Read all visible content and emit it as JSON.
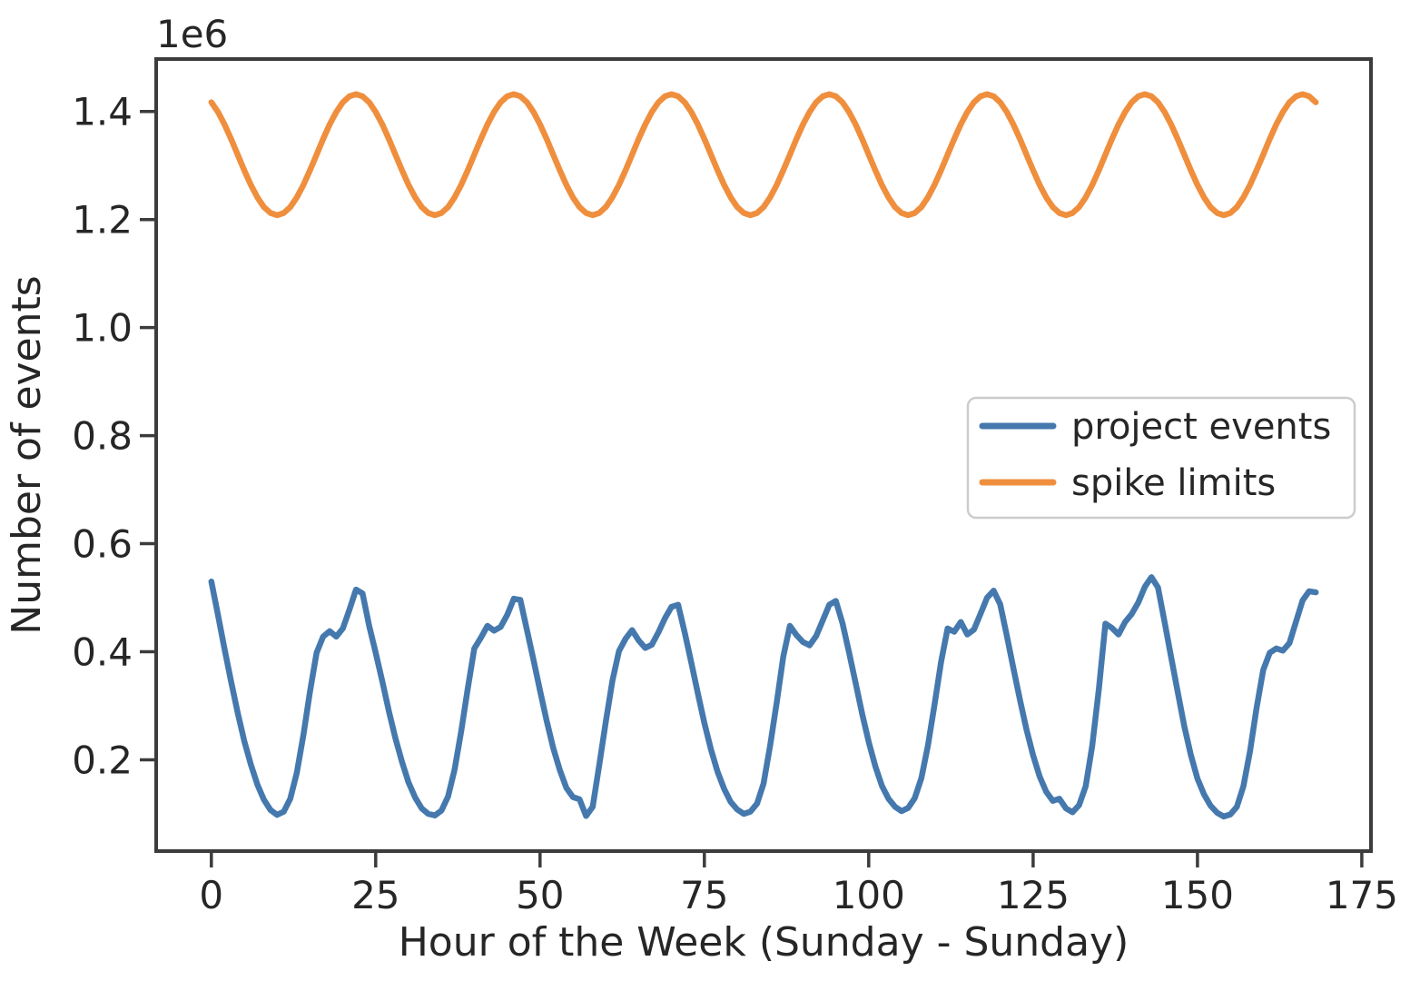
{
  "chart_data": {
    "type": "line",
    "title": "",
    "xlabel": "Hour of the Week (Sunday - Sunday)",
    "ylabel": "Number of events",
    "y_offset_text": "1e6",
    "values_unit": "events, in millions (axis shows 1e6 multiplier)",
    "value_multiplier": 1000000,
    "grid": false,
    "xlim": [
      -8.4,
      176.4
    ],
    "ylim": [
      0.031,
      1.497
    ],
    "x_ticks": [
      0,
      25,
      50,
      75,
      100,
      125,
      150,
      175
    ],
    "x_tick_labels": [
      "0",
      "25",
      "50",
      "75",
      "100",
      "125",
      "150",
      "175"
    ],
    "y_ticks": [
      0.2,
      0.4,
      0.6,
      0.8,
      1.0,
      1.2,
      1.4
    ],
    "y_tick_labels": [
      "0.2",
      "0.4",
      "0.6",
      "0.8",
      "1.0",
      "1.2",
      "1.4"
    ],
    "x": {
      "start": 0,
      "step": 1,
      "count": 169
    },
    "legend": {
      "loc": "center right"
    },
    "series": [
      {
        "name": "project events",
        "color": "#4579ae",
        "values": [
          0.53,
          0.468,
          0.405,
          0.345,
          0.287,
          0.235,
          0.191,
          0.154,
          0.126,
          0.107,
          0.098,
          0.104,
          0.128,
          0.176,
          0.246,
          0.326,
          0.398,
          0.428,
          0.438,
          0.428,
          0.443,
          0.478,
          0.515,
          0.508,
          0.448,
          0.398,
          0.345,
          0.29,
          0.24,
          0.196,
          0.158,
          0.13,
          0.11,
          0.1,
          0.097,
          0.106,
          0.132,
          0.182,
          0.252,
          0.332,
          0.406,
          0.426,
          0.448,
          0.439,
          0.446,
          0.468,
          0.498,
          0.496,
          0.44,
          0.385,
          0.328,
          0.272,
          0.222,
          0.181,
          0.148,
          0.131,
          0.127,
          0.096,
          0.113,
          0.19,
          0.27,
          0.346,
          0.401,
          0.424,
          0.44,
          0.421,
          0.407,
          0.413,
          0.436,
          0.462,
          0.483,
          0.487,
          0.436,
          0.38,
          0.323,
          0.268,
          0.219,
          0.178,
          0.146,
          0.122,
          0.108,
          0.1,
          0.104,
          0.119,
          0.156,
          0.226,
          0.306,
          0.391,
          0.448,
          0.431,
          0.418,
          0.412,
          0.429,
          0.458,
          0.487,
          0.494,
          0.453,
          0.399,
          0.342,
          0.285,
          0.233,
          0.188,
          0.152,
          0.128,
          0.113,
          0.105,
          0.111,
          0.129,
          0.166,
          0.226,
          0.301,
          0.381,
          0.443,
          0.437,
          0.455,
          0.432,
          0.441,
          0.47,
          0.5,
          0.513,
          0.488,
          0.43,
          0.37,
          0.311,
          0.256,
          0.208,
          0.169,
          0.141,
          0.124,
          0.128,
          0.11,
          0.103,
          0.116,
          0.151,
          0.226,
          0.331,
          0.452,
          0.444,
          0.432,
          0.455,
          0.47,
          0.491,
          0.52,
          0.538,
          0.519,
          0.455,
          0.39,
          0.326,
          0.262,
          0.209,
          0.165,
          0.136,
          0.115,
          0.102,
          0.095,
          0.099,
          0.113,
          0.151,
          0.216,
          0.296,
          0.366,
          0.398,
          0.406,
          0.402,
          0.416,
          0.456,
          0.495,
          0.512,
          0.51
        ]
      },
      {
        "name": "spike limits",
        "color": "#ef8f3e",
        "values": [
          1.417,
          1.399,
          1.376,
          1.349,
          1.32,
          1.291,
          1.264,
          1.241,
          1.223,
          1.212,
          1.208,
          1.212,
          1.223,
          1.241,
          1.264,
          1.291,
          1.32,
          1.349,
          1.376,
          1.399,
          1.417,
          1.428,
          1.432,
          1.428,
          1.417,
          1.399,
          1.376,
          1.349,
          1.32,
          1.291,
          1.264,
          1.241,
          1.223,
          1.212,
          1.208,
          1.212,
          1.223,
          1.241,
          1.264,
          1.291,
          1.32,
          1.349,
          1.376,
          1.399,
          1.417,
          1.428,
          1.432,
          1.428,
          1.417,
          1.399,
          1.376,
          1.349,
          1.32,
          1.291,
          1.264,
          1.241,
          1.223,
          1.212,
          1.208,
          1.212,
          1.223,
          1.241,
          1.264,
          1.291,
          1.32,
          1.349,
          1.376,
          1.399,
          1.417,
          1.428,
          1.432,
          1.428,
          1.417,
          1.399,
          1.376,
          1.349,
          1.32,
          1.291,
          1.264,
          1.241,
          1.223,
          1.212,
          1.208,
          1.212,
          1.223,
          1.241,
          1.264,
          1.291,
          1.32,
          1.349,
          1.376,
          1.399,
          1.417,
          1.428,
          1.432,
          1.428,
          1.417,
          1.399,
          1.376,
          1.349,
          1.32,
          1.291,
          1.264,
          1.241,
          1.223,
          1.212,
          1.208,
          1.212,
          1.223,
          1.241,
          1.264,
          1.291,
          1.32,
          1.349,
          1.376,
          1.399,
          1.417,
          1.428,
          1.432,
          1.428,
          1.417,
          1.399,
          1.376,
          1.349,
          1.32,
          1.291,
          1.264,
          1.241,
          1.223,
          1.212,
          1.208,
          1.212,
          1.223,
          1.241,
          1.264,
          1.291,
          1.32,
          1.349,
          1.376,
          1.399,
          1.417,
          1.428,
          1.432,
          1.428,
          1.417,
          1.399,
          1.376,
          1.349,
          1.32,
          1.291,
          1.264,
          1.241,
          1.223,
          1.212,
          1.208,
          1.212,
          1.223,
          1.241,
          1.264,
          1.291,
          1.32,
          1.349,
          1.376,
          1.399,
          1.417,
          1.428,
          1.432,
          1.428,
          1.417
        ]
      }
    ]
  }
}
